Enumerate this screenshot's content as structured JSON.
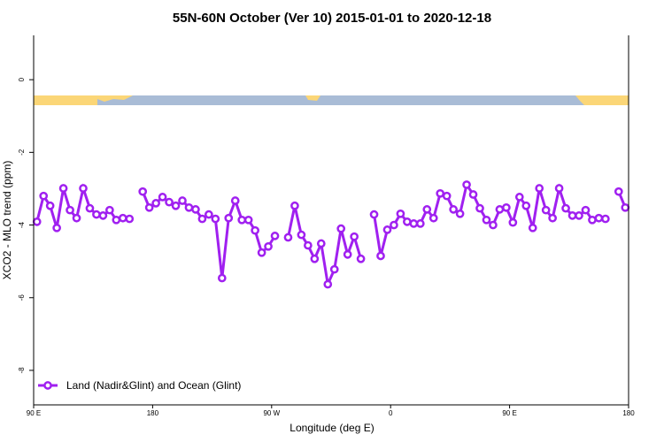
{
  "chart_data": {
    "type": "line",
    "title": "55N-60N October (Ver 10)   2015-01-01 to 2020-12-18",
    "x_label": "Longitude (deg E)",
    "y_label": "XCO2 - MLO trend (ppm)",
    "xlim": [
      90,
      540
    ],
    "ylim": [
      -8.95,
      1.22
    ],
    "xticks": [
      {
        "value": 90,
        "label": "90 E"
      },
      {
        "value": 180,
        "label": "180"
      },
      {
        "value": 270,
        "label": "90 W"
      },
      {
        "value": 360,
        "label": "0"
      },
      {
        "value": 450,
        "label": "90 E"
      },
      {
        "value": 540,
        "label": "180"
      }
    ],
    "yticks": [
      -8,
      -6,
      -4,
      -2,
      0
    ],
    "legend_position": "bottom-left",
    "x": [
      92.5,
      97.5,
      102.5,
      107.5,
      112.5,
      117.5,
      122.5,
      127.5,
      132.5,
      137.5,
      142.5,
      147.5,
      152.5,
      157.5,
      162.5,
      167.5,
      172.5,
      177.5,
      182.5,
      187.5,
      192.5,
      197.5,
      202.5,
      207.5,
      212.5,
      217.5,
      222.5,
      227.5,
      232.5,
      237.5,
      242.5,
      247.5,
      252.5,
      257.5,
      262.5,
      267.5,
      272.5,
      277.5,
      282.5,
      287.5,
      292.5,
      297.5,
      302.5,
      307.5,
      312.5,
      317.5,
      322.5,
      327.5,
      332.5,
      337.5,
      342.5,
      347.5,
      352.5,
      357.5,
      362.5,
      367.5,
      372.5,
      377.5,
      382.5,
      387.5,
      392.5,
      397.5,
      402.5,
      407.5,
      412.5,
      417.5,
      422.5,
      427.5,
      432.5,
      437.5,
      442.5,
      447.5,
      452.5,
      457.5,
      462.5,
      467.5,
      472.5,
      477.5,
      482.5,
      487.5,
      492.5,
      497.5,
      502.5,
      507.5,
      512.5,
      517.5,
      522.5,
      527.5,
      532.5,
      537.5
    ],
    "series": [
      {
        "name": "Land (Nadir&Glint) and Ocean (Glint)",
        "color": "#a020f0",
        "values": [
          -3.91,
          -3.2,
          -3.47,
          -4.08,
          -2.99,
          -3.59,
          -3.81,
          -2.99,
          -3.54,
          -3.71,
          -3.74,
          -3.59,
          -3.86,
          -3.81,
          -3.83,
          null,
          -3.08,
          -3.52,
          -3.4,
          -3.23,
          -3.37,
          -3.47,
          -3.33,
          -3.52,
          -3.57,
          -3.83,
          -3.71,
          -3.83,
          -5.46,
          -3.81,
          -3.33,
          -3.86,
          -3.86,
          -4.15,
          -4.76,
          -4.59,
          -4.3,
          null,
          -4.34,
          -3.47,
          -4.27,
          -4.56,
          -4.93,
          -4.51,
          -5.63,
          -5.22,
          -4.1,
          -4.81,
          -4.32,
          -4.93,
          null,
          -3.71,
          -4.85,
          -4.13,
          -4.0,
          -3.69,
          -3.91,
          -3.96,
          -3.96,
          -3.57,
          -3.81,
          -3.13,
          -3.2,
          -3.57,
          -3.69,
          -2.89,
          -3.16,
          -3.54,
          -3.86,
          -4.0,
          -3.57,
          -3.52,
          -3.93,
          -3.23,
          -3.47,
          -4.08,
          -2.99,
          -3.59,
          -3.81,
          -2.99,
          -3.54,
          -3.74,
          -3.74,
          -3.59,
          -3.86,
          -3.81,
          -3.83,
          null,
          -3.08,
          -3.52
        ]
      }
    ]
  }
}
